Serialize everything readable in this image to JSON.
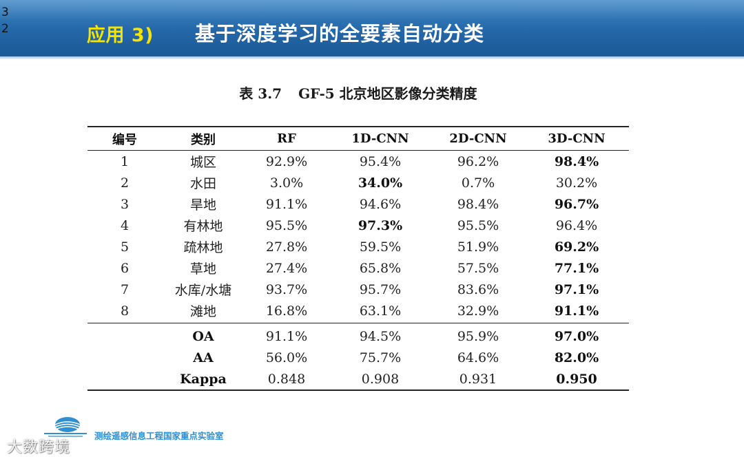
{
  "slide_number": [
    "3",
    "2"
  ],
  "header": {
    "section_label": "应用 3)",
    "title": "基于深度学习的全要素自动分类"
  },
  "table": {
    "caption_number": "表 3.7",
    "caption_text": "GF-5 北京地区影像分类精度",
    "headers": [
      "编号",
      "类别",
      "RF",
      "1D-CNN",
      "2D-CNN",
      "3D-CNN"
    ],
    "rows": [
      {
        "id": "1",
        "class": "城区",
        "rf": "92.9%",
        "cnn1d": "95.4%",
        "cnn2d": "96.2%",
        "cnn3d": "98.4%"
      },
      {
        "id": "2",
        "class": "水田",
        "rf": "3.0%",
        "cnn1d": "34.0%",
        "cnn2d": "0.7%",
        "cnn3d": "30.2%"
      },
      {
        "id": "3",
        "class": "旱地",
        "rf": "91.1%",
        "cnn1d": "94.6%",
        "cnn2d": "98.4%",
        "cnn3d": "96.7%"
      },
      {
        "id": "4",
        "class": "有林地",
        "rf": "95.5%",
        "cnn1d": "97.3%",
        "cnn2d": "95.5%",
        "cnn3d": "96.4%"
      },
      {
        "id": "5",
        "class": "疏林地",
        "rf": "27.8%",
        "cnn1d": "59.5%",
        "cnn2d": "51.9%",
        "cnn3d": "69.2%"
      },
      {
        "id": "6",
        "class": "草地",
        "rf": "27.4%",
        "cnn1d": "65.8%",
        "cnn2d": "57.5%",
        "cnn3d": "77.1%"
      },
      {
        "id": "7",
        "class": "水库/水塘",
        "rf": "93.7%",
        "cnn1d": "95.7%",
        "cnn2d": "83.6%",
        "cnn3d": "97.1%"
      },
      {
        "id": "8",
        "class": "滩地",
        "rf": "16.8%",
        "cnn1d": "63.1%",
        "cnn2d": "32.9%",
        "cnn3d": "91.1%"
      }
    ],
    "summary": [
      {
        "label": "OA",
        "rf": "91.1%",
        "cnn1d": "94.5%",
        "cnn2d": "95.9%",
        "cnn3d": "97.0%"
      },
      {
        "label": "AA",
        "rf": "56.0%",
        "cnn1d": "75.7%",
        "cnn2d": "64.6%",
        "cnn3d": "82.0%"
      },
      {
        "label": "Kappa",
        "rf": "0.848",
        "cnn1d": "0.908",
        "cnn2d": "0.931",
        "cnn3d": "0.950"
      }
    ]
  },
  "footer": {
    "logo": "lab-logo-icon",
    "lab_name": "测绘遥感信息工程国家重点实验室",
    "watermark": "大数跨境"
  },
  "colors": {
    "header_blue": "#2467a8",
    "section_yellow": "#f5e400",
    "footer_blue": "#2f8fd0"
  }
}
